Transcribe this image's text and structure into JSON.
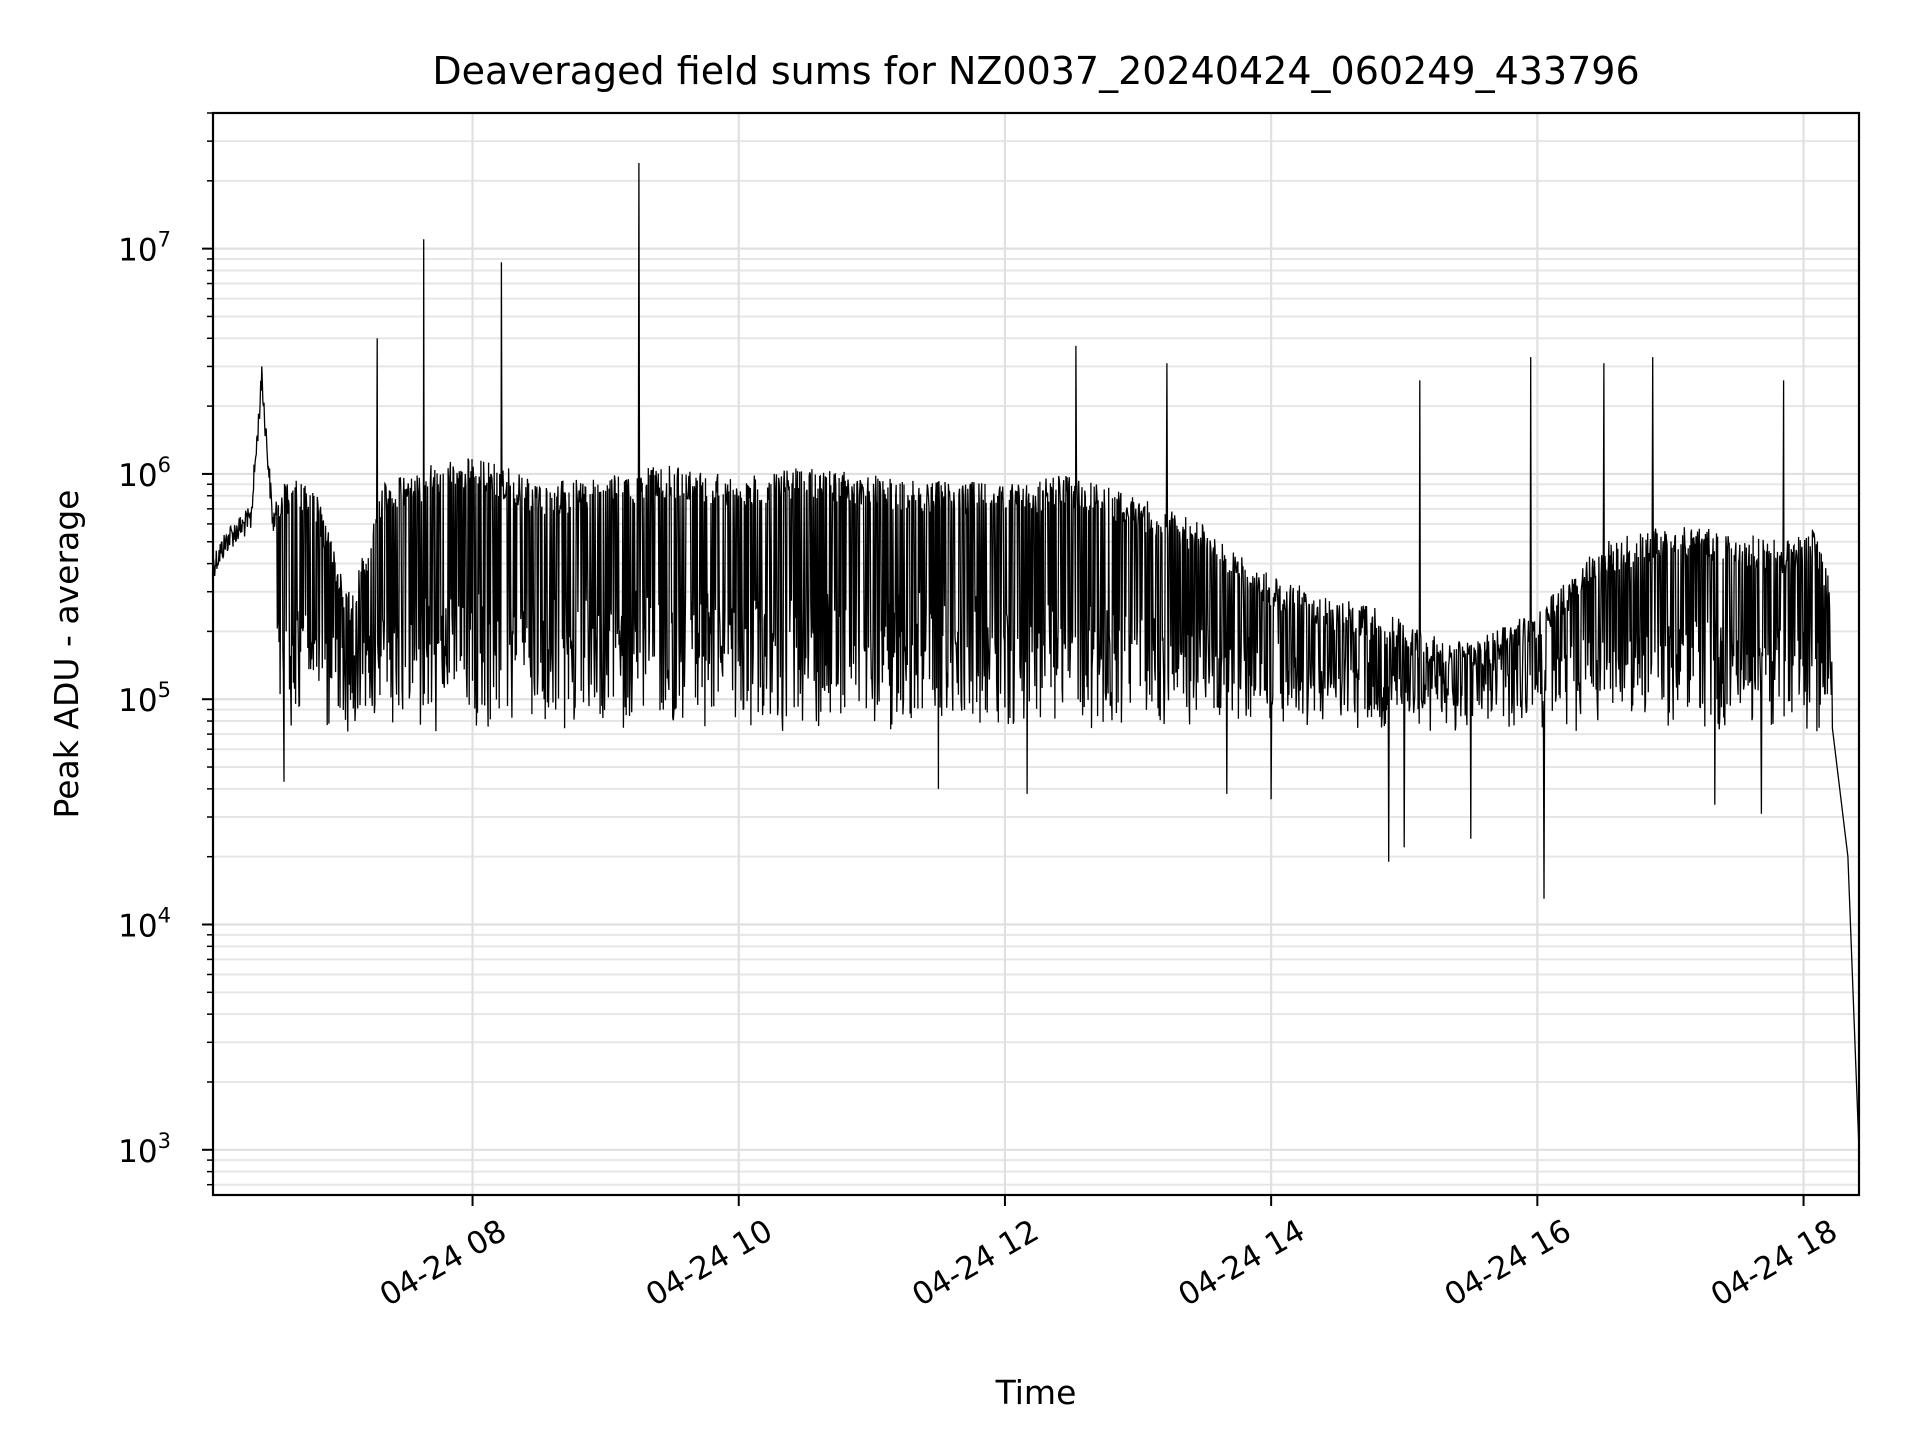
{
  "chart_data": {
    "type": "line",
    "title": "Deaveraged field sums for NZ0037_20240424_060249_433796",
    "xlabel": "Time",
    "ylabel": "Peak ADU - average",
    "y_scale": "log",
    "ylim": [
      630,
      40000000
    ],
    "xlim": [
      "04-24 06:03",
      "04-24 18:25"
    ],
    "grid": true,
    "x_ticks": [
      {
        "t": "04-24 08:00",
        "label": "04-24 08"
      },
      {
        "t": "04-24 10:00",
        "label": "04-24 10"
      },
      {
        "t": "04-24 12:00",
        "label": "04-24 12"
      },
      {
        "t": "04-24 14:00",
        "label": "04-24 14"
      },
      {
        "t": "04-24 16:00",
        "label": "04-24 16"
      },
      {
        "t": "04-24 18:00",
        "label": "04-24 18"
      }
    ],
    "y_ticks": [
      {
        "value": 1000,
        "base": "10",
        "exp": "3"
      },
      {
        "value": 10000,
        "base": "10",
        "exp": "4"
      },
      {
        "value": 100000,
        "base": "10",
        "exp": "5"
      },
      {
        "value": 1000000,
        "base": "10",
        "exp": "6"
      },
      {
        "value": 10000000,
        "base": "10",
        "exp": "7"
      }
    ],
    "line_color": "#000000",
    "series": [
      {
        "x": [
          "04-24 06:03",
          "04-24 06:10",
          "04-24 06:20",
          "04-24 06:25",
          "04-24 06:30",
          "04-24 06:35",
          "04-24 06:40",
          "04-24 06:50",
          "04-24 07:00",
          "04-24 07:05",
          "04-24 07:20",
          "04-24 07:40",
          "04-24 07:57",
          "04-24 08:13",
          "04-24 08:30",
          "04-24 09:00",
          "04-24 09:30",
          "04-24 10:00",
          "04-24 10:30",
          "04-24 11:00",
          "04-24 11:30",
          "04-24 12:00",
          "04-24 12:30",
          "04-24 13:00",
          "04-24 13:30",
          "04-24 13:50",
          "04-24 14:20",
          "04-24 14:50",
          "04-24 15:10",
          "04-24 15:30",
          "04-24 16:00",
          "04-24 16:30",
          "04-24 17:00",
          "04-24 17:30",
          "04-24 17:55",
          "04-24 18:05",
          "04-24 18:13",
          "04-24 18:20",
          "04-24 18:25"
        ],
        "y": [
          450000,
          600000,
          720000,
          3000000,
          700000,
          900000,
          1000000,
          800000,
          400000,
          300000,
          900000,
          1100000,
          1200000,
          1100000,
          900000,
          1000000,
          1100000,
          1000000,
          1100000,
          1000000,
          950000,
          900000,
          1000000,
          800000,
          600000,
          400000,
          300000,
          250000,
          200000,
          180000,
          250000,
          500000,
          600000,
          550000,
          500000,
          600000,
          300000,
          20000,
          1000
        ]
      }
    ],
    "spikes": [
      {
        "t": "04-24 06:25",
        "value": 3000000
      },
      {
        "t": "04-24 07:17",
        "value": 4000000
      },
      {
        "t": "04-24 07:38",
        "value": 11000000
      },
      {
        "t": "04-24 08:13",
        "value": 8700000
      },
      {
        "t": "04-24 09:15",
        "value": 24000000
      },
      {
        "t": "04-24 12:32",
        "value": 3700000
      },
      {
        "t": "04-24 13:13",
        "value": 3100000
      },
      {
        "t": "04-24 15:07",
        "value": 2600000
      },
      {
        "t": "04-24 15:57",
        "value": 3300000
      },
      {
        "t": "04-24 16:30",
        "value": 3100000
      },
      {
        "t": "04-24 16:52",
        "value": 3300000
      },
      {
        "t": "04-24 17:51",
        "value": 2600000
      }
    ],
    "dips": [
      {
        "t": "04-24 06:35",
        "value": 43000
      },
      {
        "t": "04-24 11:30",
        "value": 40000
      },
      {
        "t": "04-24 12:10",
        "value": 38000
      },
      {
        "t": "04-24 13:40",
        "value": 38000
      },
      {
        "t": "04-24 14:00",
        "value": 36000
      },
      {
        "t": "04-24 14:53",
        "value": 19000
      },
      {
        "t": "04-24 15:00",
        "value": 22000
      },
      {
        "t": "04-24 15:30",
        "value": 24000
      },
      {
        "t": "04-24 16:03",
        "value": 13000
      },
      {
        "t": "04-24 17:20",
        "value": 34000
      },
      {
        "t": "04-24 17:41",
        "value": 31000
      }
    ]
  }
}
